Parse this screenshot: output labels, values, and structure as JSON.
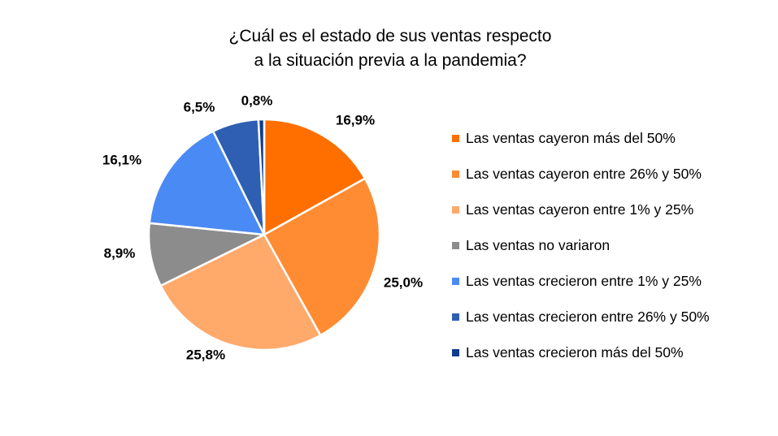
{
  "chart_data": {
    "type": "pie",
    "title": [
      "¿Cuál es el estado de sus ventas respecto",
      "a la situación previa a la pandemia?"
    ],
    "legend_position": "right",
    "slices": [
      {
        "label": "Las ventas cayeron más del 50%",
        "value": 16.9,
        "display": "16,9%",
        "color": "#ff6f00"
      },
      {
        "label": "Las ventas cayeron entre 26% y 50%",
        "value": 25.0,
        "display": "25,0%",
        "color": "#ff8c33"
      },
      {
        "label": "Las ventas cayeron entre 1% y 25%",
        "value": 25.8,
        "display": "25,8%",
        "color": "#ffa96b"
      },
      {
        "label": "Las ventas no variaron",
        "value": 8.9,
        "display": "8,9%",
        "color": "#8c8c8c"
      },
      {
        "label": "Las ventas crecieron entre 1% y 25%",
        "value": 16.1,
        "display": "16,1%",
        "color": "#4a8af4"
      },
      {
        "label": "Las ventas crecieron entre 26% y 50%",
        "value": 6.5,
        "display": "6,5%",
        "color": "#2e5fb3"
      },
      {
        "label": "Las ventas crecieron más del 50%",
        "value": 0.8,
        "display": "0,8%",
        "color": "#0f3c8c"
      }
    ]
  }
}
